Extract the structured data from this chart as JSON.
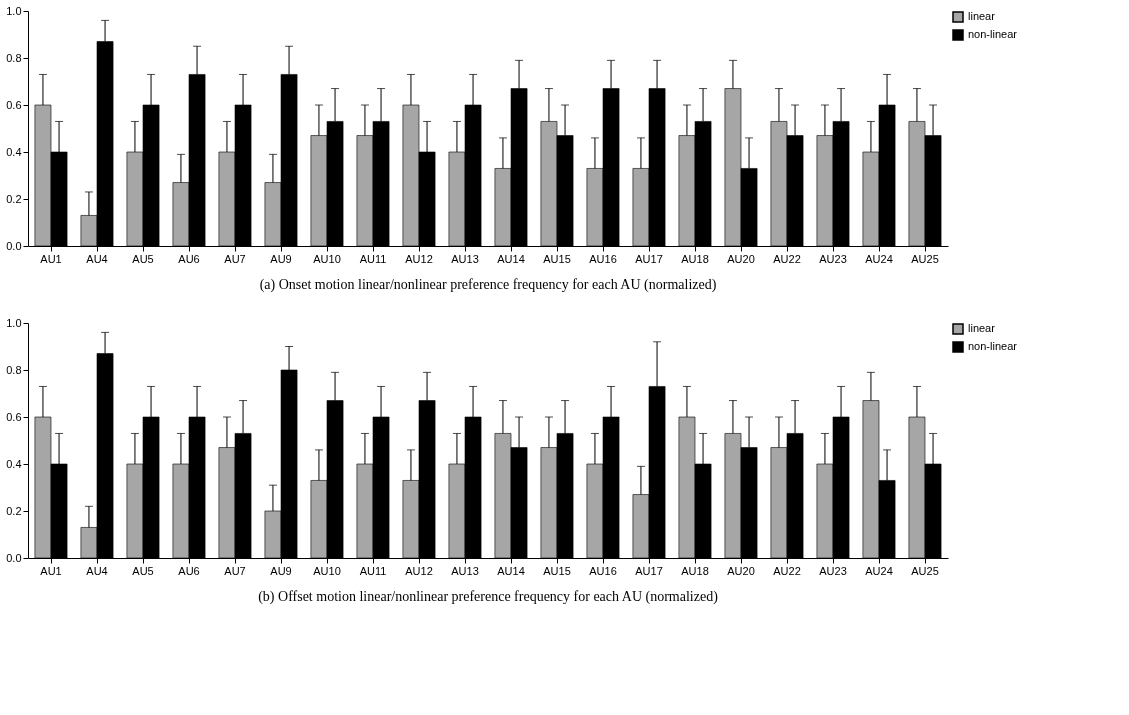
{
  "chart_data": [
    {
      "type": "bar",
      "title": "(a) Onset motion linear/nonlinear preference frequency for each AU (normalized)",
      "categories": [
        "AU1",
        "AU4",
        "AU5",
        "AU6",
        "AU7",
        "AU9",
        "AU10",
        "AU11",
        "AU12",
        "AU13",
        "AU14",
        "AU15",
        "AU16",
        "AU17",
        "AU18",
        "AU20",
        "AU22",
        "AU23",
        "AU24",
        "AU25"
      ],
      "series": [
        {
          "name": "linear",
          "color": "#a6a6a6",
          "values": [
            0.6,
            0.13,
            0.4,
            0.27,
            0.4,
            0.27,
            0.47,
            0.47,
            0.6,
            0.4,
            0.33,
            0.53,
            0.33,
            0.33,
            0.47,
            0.67,
            0.53,
            0.47,
            0.4,
            0.53
          ],
          "errors": [
            [
              0.6,
              0.73
            ],
            [
              0.13,
              0.23
            ],
            [
              0.4,
              0.53
            ],
            [
              0.27,
              0.39
            ],
            [
              0.4,
              0.53
            ],
            [
              0.27,
              0.39
            ],
            [
              0.47,
              0.6
            ],
            [
              0.47,
              0.6
            ],
            [
              0.6,
              0.73
            ],
            [
              0.4,
              0.53
            ],
            [
              0.33,
              0.46
            ],
            [
              0.53,
              0.67
            ],
            [
              0.33,
              0.46
            ],
            [
              0.33,
              0.46
            ],
            [
              0.47,
              0.6
            ],
            [
              0.67,
              0.79
            ],
            [
              0.53,
              0.67
            ],
            [
              0.47,
              0.6
            ],
            [
              0.4,
              0.53
            ],
            [
              0.53,
              0.67
            ]
          ]
        },
        {
          "name": "non-linear",
          "color": "#000000",
          "values": [
            0.4,
            0.87,
            0.6,
            0.73,
            0.6,
            0.73,
            0.53,
            0.53,
            0.4,
            0.6,
            0.67,
            0.47,
            0.67,
            0.67,
            0.53,
            0.33,
            0.47,
            0.53,
            0.6,
            0.47
          ],
          "errors": [
            [
              0.4,
              0.53
            ],
            [
              0.87,
              0.96
            ],
            [
              0.6,
              0.73
            ],
            [
              0.73,
              0.85
            ],
            [
              0.6,
              0.73
            ],
            [
              0.73,
              0.85
            ],
            [
              0.53,
              0.67
            ],
            [
              0.53,
              0.67
            ],
            [
              0.4,
              0.53
            ],
            [
              0.6,
              0.73
            ],
            [
              0.67,
              0.79
            ],
            [
              0.47,
              0.6
            ],
            [
              0.67,
              0.79
            ],
            [
              0.67,
              0.79
            ],
            [
              0.53,
              0.67
            ],
            [
              0.33,
              0.46
            ],
            [
              0.47,
              0.6
            ],
            [
              0.53,
              0.67
            ],
            [
              0.6,
              0.73
            ],
            [
              0.47,
              0.6
            ]
          ]
        }
      ],
      "ylim": [
        0,
        1
      ],
      "yticks": [
        {
          "value": 0,
          "label": "0.0"
        },
        {
          "value": 0.2,
          "label": "0.2"
        },
        {
          "value": 0.4,
          "label": "0.4"
        },
        {
          "value": 0.6,
          "label": "0.6"
        },
        {
          "value": 0.8,
          "label": "0.8"
        },
        {
          "value": 1,
          "label": "1.0"
        }
      ],
      "grid": false,
      "legend": "right"
    },
    {
      "type": "bar",
      "title": "(b) Offset motion linear/nonlinear preference frequency for each AU (normalized)",
      "categories": [
        "AU1",
        "AU4",
        "AU5",
        "AU6",
        "AU7",
        "AU9",
        "AU10",
        "AU11",
        "AU12",
        "AU13",
        "AU14",
        "AU15",
        "AU16",
        "AU17",
        "AU18",
        "AU20",
        "AU22",
        "AU23",
        "AU24",
        "AU25"
      ],
      "series": [
        {
          "name": "linear",
          "color": "#a6a6a6",
          "values": [
            0.6,
            0.13,
            0.4,
            0.4,
            0.47,
            0.2,
            0.33,
            0.4,
            0.33,
            0.4,
            0.53,
            0.47,
            0.4,
            0.27,
            0.6,
            0.53,
            0.47,
            0.4,
            0.67,
            0.6
          ],
          "errors": [
            [
              0.6,
              0.73
            ],
            [
              0.13,
              0.22
            ],
            [
              0.4,
              0.53
            ],
            [
              0.4,
              0.53
            ],
            [
              0.47,
              0.6
            ],
            [
              0.2,
              0.31
            ],
            [
              0.33,
              0.46
            ],
            [
              0.4,
              0.53
            ],
            [
              0.33,
              0.46
            ],
            [
              0.4,
              0.53
            ],
            [
              0.53,
              0.67
            ],
            [
              0.47,
              0.6
            ],
            [
              0.4,
              0.53
            ],
            [
              0.27,
              0.39
            ],
            [
              0.6,
              0.73
            ],
            [
              0.53,
              0.67
            ],
            [
              0.47,
              0.6
            ],
            [
              0.4,
              0.53
            ],
            [
              0.67,
              0.79
            ],
            [
              0.6,
              0.73
            ]
          ]
        },
        {
          "name": "non-linear",
          "color": "#000000",
          "values": [
            0.4,
            0.87,
            0.6,
            0.6,
            0.53,
            0.8,
            0.67,
            0.6,
            0.67,
            0.6,
            0.47,
            0.53,
            0.6,
            0.73,
            0.4,
            0.47,
            0.53,
            0.6,
            0.33,
            0.4
          ],
          "errors": [
            [
              0.4,
              0.53
            ],
            [
              0.87,
              0.96
            ],
            [
              0.6,
              0.73
            ],
            [
              0.6,
              0.73
            ],
            [
              0.53,
              0.67
            ],
            [
              0.8,
              0.9
            ],
            [
              0.67,
              0.79
            ],
            [
              0.6,
              0.73
            ],
            [
              0.67,
              0.79
            ],
            [
              0.6,
              0.73
            ],
            [
              0.47,
              0.6
            ],
            [
              0.53,
              0.67
            ],
            [
              0.6,
              0.73
            ],
            [
              0.73,
              0.92
            ],
            [
              0.4,
              0.53
            ],
            [
              0.47,
              0.6
            ],
            [
              0.53,
              0.67
            ],
            [
              0.6,
              0.73
            ],
            [
              0.33,
              0.46
            ],
            [
              0.4,
              0.53
            ]
          ]
        }
      ],
      "ylim": [
        0,
        1
      ],
      "yticks": [
        {
          "value": 0,
          "label": "0.0"
        },
        {
          "value": 0.2,
          "label": "0.2"
        },
        {
          "value": 0.4,
          "label": "0.4"
        },
        {
          "value": 0.6,
          "label": "0.6"
        },
        {
          "value": 0.8,
          "label": "0.8"
        },
        {
          "value": 1,
          "label": "1.0"
        }
      ],
      "grid": false,
      "legend": "right"
    }
  ]
}
